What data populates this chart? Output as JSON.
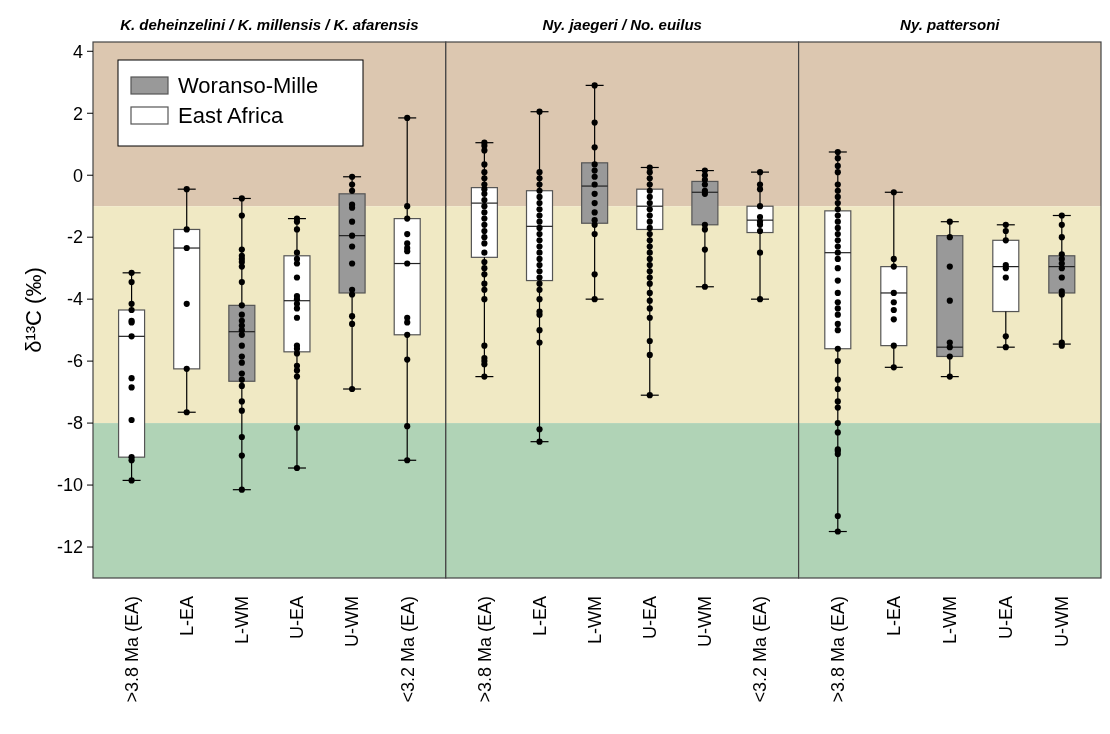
{
  "chart_data": [
    {
      "type": "box",
      "title": "K. deheinzelini / K. millensis / K. afarensis",
      "ylabel": "δ¹³C (‰)",
      "categories": [
        ">3.8 Ma (EA)",
        "L-EA",
        "L-WM",
        "U-EA",
        "U-WM",
        "<3.2 Ma (EA)"
      ],
      "ylim": [
        -13,
        4.3
      ],
      "yticks": [
        -12,
        -10,
        -8,
        -6,
        -4,
        -2,
        0,
        2,
        4
      ],
      "legend": "top left",
      "marker": "circle",
      "bands": [
        {
          "axis": "y",
          "from": -1,
          "to": 4.3,
          "color": "#dcc7b0"
        },
        {
          "axis": "y",
          "from": -8,
          "to": -1,
          "color": "#f0e9c4"
        },
        {
          "axis": "y",
          "from": -13,
          "to": -8,
          "color": "#b0d3b6"
        }
      ],
      "series": [
        {
          "name": "Woranso-Mille",
          "color": "#999999",
          "boxes": [
            null,
            null,
            {
              "low": -10.15,
              "q1": -6.65,
              "median": -5.05,
              "q3": -4.2,
              "high": -0.75
            },
            null,
            {
              "low": -6.9,
              "q1": -3.8,
              "median": -1.95,
              "q3": -0.6,
              "high": -0.05
            },
            null
          ]
        },
        {
          "name": "East Africa",
          "color": "#ffffff",
          "boxes": [
            {
              "low": -9.85,
              "q1": -9.1,
              "median": -5.2,
              "q3": -4.35,
              "high": -3.15
            },
            {
              "low": -7.65,
              "q1": -6.25,
              "median": -2.35,
              "q3": -1.75,
              "high": -0.45
            },
            null,
            {
              "low": -9.45,
              "q1": -5.7,
              "median": -4.05,
              "q3": -2.6,
              "high": -1.4
            },
            null,
            {
              "low": -9.2,
              "q1": -5.15,
              "median": -2.85,
              "q3": -1.4,
              "high": 1.85
            }
          ]
        },
        {
          "type": "scatter",
          "color": "#000000",
          "x": [
            ">3.8 Ma (EA)",
            ">3.8 Ma (EA)",
            ">3.8 Ma (EA)",
            ">3.8 Ma (EA)",
            ">3.8 Ma (EA)",
            ">3.8 Ma (EA)",
            ">3.8 Ma (EA)",
            ">3.8 Ma (EA)",
            ">3.8 Ma (EA)",
            ">3.8 Ma (EA)",
            ">3.8 Ma (EA)",
            ">3.8 Ma (EA)",
            ">3.8 Ma (EA)",
            "L-EA",
            "L-EA",
            "L-EA",
            "L-EA",
            "L-EA",
            "L-EA",
            "L-WM",
            "L-WM",
            "L-WM",
            "L-WM",
            "L-WM",
            "L-WM",
            "L-WM",
            "L-WM",
            "L-WM",
            "L-WM",
            "L-WM",
            "L-WM",
            "L-WM",
            "L-WM",
            "L-WM",
            "L-WM",
            "L-WM",
            "L-WM",
            "L-WM",
            "L-WM",
            "L-WM",
            "L-WM",
            "L-WM",
            "L-WM",
            "L-WM",
            "U-EA",
            "U-EA",
            "U-EA",
            "U-EA",
            "U-EA",
            "U-EA",
            "U-EA",
            "U-EA",
            "U-EA",
            "U-EA",
            "U-EA",
            "U-EA",
            "U-EA",
            "U-EA",
            "U-EA",
            "U-EA",
            "U-EA",
            "U-EA",
            "U-EA",
            "U-EA",
            "U-WM",
            "U-WM",
            "U-WM",
            "U-WM",
            "U-WM",
            "U-WM",
            "U-WM",
            "U-WM",
            "U-WM",
            "U-WM",
            "U-WM",
            "U-WM",
            "U-WM",
            "U-WM",
            "<3.2 Ma (EA)",
            "<3.2 Ma (EA)",
            "<3.2 Ma (EA)",
            "<3.2 Ma (EA)",
            "<3.2 Ma (EA)",
            "<3.2 Ma (EA)",
            "<3.2 Ma (EA)",
            "<3.2 Ma (EA)",
            "<3.2 Ma (EA)",
            "<3.2 Ma (EA)",
            "<3.2 Ma (EA)",
            "<3.2 Ma (EA)",
            "<3.2 Ma (EA)",
            "<3.2 Ma (EA)"
          ],
          "values": [
            -3.15,
            -3.45,
            -4.15,
            -4.35,
            -4.7,
            -4.75,
            -5.2,
            -6.55,
            -6.85,
            -7.9,
            -9.1,
            -9.2,
            -9.85,
            -0.45,
            -1.75,
            -2.35,
            -4.15,
            -6.25,
            -7.65,
            -0.75,
            -1.3,
            -2.4,
            -2.6,
            -2.7,
            -2.8,
            -2.95,
            -3.45,
            -4.2,
            -4.5,
            -4.7,
            -4.85,
            -5.0,
            -5.15,
            -5.5,
            -5.85,
            -6.05,
            -6.4,
            -6.6,
            -6.8,
            -7.3,
            -7.6,
            -8.45,
            -9.05,
            -10.15,
            -1.4,
            -1.5,
            -1.75,
            -2.5,
            -2.7,
            -2.85,
            -3.3,
            -3.9,
            -4.0,
            -4.15,
            -4.3,
            -4.6,
            -5.5,
            -5.6,
            -5.75,
            -6.15,
            -6.3,
            -6.5,
            -8.15,
            -9.45,
            -0.05,
            -0.3,
            -0.5,
            -0.95,
            -1.05,
            -1.5,
            -1.95,
            -2.3,
            -2.85,
            -3.7,
            -3.85,
            -4.55,
            -4.8,
            -6.9,
            1.85,
            -1.0,
            -1.4,
            -1.9,
            -2.2,
            -2.35,
            -2.45,
            -2.85,
            -4.6,
            -4.75,
            -5.15,
            -5.95,
            -8.1,
            -9.2
          ]
        }
      ]
    },
    {
      "type": "box",
      "title": "Ny. jaegeri / No. euilus",
      "categories": [
        ">3.8 Ma (EA)",
        "L-EA",
        "L-WM",
        "U-EA",
        "U-WM",
        "<3.2 Ma (EA)"
      ],
      "ylim": [
        -13,
        4.3
      ],
      "tick_labels": "x",
      "marker": "circle",
      "bands": [
        {
          "axis": "y",
          "from": -1,
          "to": 4.3,
          "color": "#dcc7b0"
        },
        {
          "axis": "y",
          "from": -8,
          "to": -1,
          "color": "#f0e9c4"
        },
        {
          "axis": "y",
          "from": -13,
          "to": -8,
          "color": "#b0d3b6"
        }
      ],
      "series": [
        {
          "color": "#999999",
          "boxes": [
            null,
            null,
            {
              "low": -4.0,
              "q1": -1.55,
              "median": -0.35,
              "q3": 0.4,
              "high": 2.9
            },
            null,
            {
              "low": -3.6,
              "q1": -1.6,
              "median": -0.55,
              "q3": -0.2,
              "high": 0.15
            },
            null
          ]
        },
        {
          "color": "#ffffff",
          "boxes": [
            {
              "low": -6.5,
              "q1": -2.65,
              "median": -0.9,
              "q3": -0.4,
              "high": 1.05
            },
            {
              "low": -8.6,
              "q1": -3.4,
              "median": -1.65,
              "q3": -0.5,
              "high": 2.05
            },
            null,
            {
              "low": -7.1,
              "q1": -1.75,
              "median": -1.0,
              "q3": -0.45,
              "high": 0.25
            },
            null,
            {
              "low": -4.0,
              "q1": -1.85,
              "median": -1.45,
              "q3": -1.0,
              "high": 0.1
            }
          ]
        },
        {
          "type": "scatter",
          "color": "#000000",
          "x": [
            ">3.8 Ma (EA)",
            ">3.8 Ma (EA)",
            ">3.8 Ma (EA)",
            ">3.8 Ma (EA)",
            ">3.8 Ma (EA)",
            ">3.8 Ma (EA)",
            ">3.8 Ma (EA)",
            ">3.8 Ma (EA)",
            ">3.8 Ma (EA)",
            ">3.8 Ma (EA)",
            ">3.8 Ma (EA)",
            ">3.8 Ma (EA)",
            ">3.8 Ma (EA)",
            ">3.8 Ma (EA)",
            ">3.8 Ma (EA)",
            ">3.8 Ma (EA)",
            ">3.8 Ma (EA)",
            ">3.8 Ma (EA)",
            ">3.8 Ma (EA)",
            ">3.8 Ma (EA)",
            ">3.8 Ma (EA)",
            ">3.8 Ma (EA)",
            ">3.8 Ma (EA)",
            ">3.8 Ma (EA)",
            ">3.8 Ma (EA)",
            ">3.8 Ma (EA)",
            ">3.8 Ma (EA)",
            ">3.8 Ma (EA)",
            ">3.8 Ma (EA)",
            "L-EA",
            "L-EA",
            "L-EA",
            "L-EA",
            "L-EA",
            "L-EA",
            "L-EA",
            "L-EA",
            "L-EA",
            "L-EA",
            "L-EA",
            "L-EA",
            "L-EA",
            "L-EA",
            "L-EA",
            "L-EA",
            "L-EA",
            "L-EA",
            "L-EA",
            "L-EA",
            "L-EA",
            "L-EA",
            "L-EA",
            "L-EA",
            "L-EA",
            "L-EA",
            "L-EA",
            "L-EA",
            "L-WM",
            "L-WM",
            "L-WM",
            "L-WM",
            "L-WM",
            "L-WM",
            "L-WM",
            "L-WM",
            "L-WM",
            "L-WM",
            "L-WM",
            "L-WM",
            "L-WM",
            "L-WM",
            "L-WM",
            "U-EA",
            "U-EA",
            "U-EA",
            "U-EA",
            "U-EA",
            "U-EA",
            "U-EA",
            "U-EA",
            "U-EA",
            "U-EA",
            "U-EA",
            "U-EA",
            "U-EA",
            "U-EA",
            "U-EA",
            "U-EA",
            "U-EA",
            "U-EA",
            "U-EA",
            "U-EA",
            "U-EA",
            "U-EA",
            "U-EA",
            "U-EA",
            "U-EA",
            "U-EA",
            "U-EA",
            "U-WM",
            "U-WM",
            "U-WM",
            "U-WM",
            "U-WM",
            "U-WM",
            "U-WM",
            "U-WM",
            "U-WM",
            "U-WM",
            "<3.2 Ma (EA)",
            "<3.2 Ma (EA)",
            "<3.2 Ma (EA)",
            "<3.2 Ma (EA)",
            "<3.2 Ma (EA)",
            "<3.2 Ma (EA)",
            "<3.2 Ma (EA)",
            "<3.2 Ma (EA)",
            "<3.2 Ma (EA)",
            "<3.2 Ma (EA)"
          ],
          "values": [
            1.05,
            0.95,
            0.8,
            0.35,
            0.1,
            -0.1,
            -0.3,
            -0.45,
            -0.6,
            -0.8,
            -1.0,
            -1.2,
            -1.4,
            -1.6,
            -1.8,
            -2.0,
            -2.2,
            -2.5,
            -2.8,
            -3.0,
            -3.2,
            -3.5,
            -3.7,
            -4.0,
            -5.5,
            -5.9,
            -6.0,
            -6.1,
            -6.5,
            2.05,
            0.1,
            -0.1,
            -0.3,
            -0.5,
            -0.7,
            -0.9,
            -1.1,
            -1.3,
            -1.5,
            -1.7,
            -1.9,
            -2.1,
            -2.3,
            -2.5,
            -2.7,
            -2.9,
            -3.1,
            -3.3,
            -3.5,
            -3.7,
            -4.0,
            -4.4,
            -4.5,
            -5.0,
            -5.4,
            -8.2,
            -8.6,
            2.9,
            1.7,
            0.9,
            0.35,
            0.15,
            -0.05,
            -0.3,
            -0.6,
            -0.9,
            -1.2,
            -1.45,
            -1.6,
            -1.9,
            -3.2,
            -4.0,
            0.25,
            0.1,
            -0.1,
            -0.3,
            -0.5,
            -0.7,
            -0.9,
            -1.1,
            -1.3,
            -1.5,
            -1.7,
            -1.9,
            -2.1,
            -2.3,
            -2.5,
            -2.7,
            -2.9,
            -3.1,
            -3.3,
            -3.5,
            -3.8,
            -4.05,
            -4.3,
            -4.6,
            -5.35,
            -5.8,
            -7.1,
            0.15,
            0.0,
            -0.15,
            -0.3,
            -0.5,
            -0.6,
            -1.6,
            -1.75,
            -2.4,
            -3.6,
            0.1,
            -0.3,
            -0.45,
            -1.0,
            -1.35,
            -1.5,
            -1.6,
            -1.8,
            -2.5,
            -4.0
          ]
        }
      ]
    },
    {
      "type": "box",
      "title": "Ny. pattersoni",
      "categories": [
        ">3.8 Ma (EA)",
        "L-EA",
        "L-WM",
        "U-EA",
        "U-WM"
      ],
      "ylim": [
        -13,
        4.3
      ],
      "tick_labels": "x",
      "marker": "circle",
      "bands": [
        {
          "axis": "y",
          "from": -1,
          "to": 4.3,
          "color": "#dcc7b0"
        },
        {
          "axis": "y",
          "from": -8,
          "to": -1,
          "color": "#f0e9c4"
        },
        {
          "axis": "y",
          "from": -13,
          "to": -8,
          "color": "#b0d3b6"
        }
      ],
      "series": [
        {
          "color": "#999999",
          "boxes": [
            null,
            null,
            {
              "low": -6.5,
              "q1": -5.85,
              "median": -5.55,
              "q3": -1.95,
              "high": -1.5
            },
            null,
            {
              "low": -5.45,
              "q1": -3.8,
              "median": -2.95,
              "q3": -2.6,
              "high": -1.3
            }
          ]
        },
        {
          "color": "#ffffff",
          "boxes": [
            {
              "low": -11.5,
              "q1": -5.6,
              "median": -2.5,
              "q3": -1.15,
              "high": 0.75
            },
            {
              "low": -6.2,
              "q1": -5.5,
              "median": -3.8,
              "q3": -2.95,
              "high": -0.55
            },
            null,
            {
              "low": -5.55,
              "q1": -4.4,
              "median": -2.95,
              "q3": -2.1,
              "high": -1.6
            },
            null
          ]
        },
        {
          "type": "scatter",
          "color": "#000000",
          "x": [
            ">3.8 Ma (EA)",
            ">3.8 Ma (EA)",
            ">3.8 Ma (EA)",
            ">3.8 Ma (EA)",
            ">3.8 Ma (EA)",
            ">3.8 Ma (EA)",
            ">3.8 Ma (EA)",
            ">3.8 Ma (EA)",
            ">3.8 Ma (EA)",
            ">3.8 Ma (EA)",
            ">3.8 Ma (EA)",
            ">3.8 Ma (EA)",
            ">3.8 Ma (EA)",
            ">3.8 Ma (EA)",
            ">3.8 Ma (EA)",
            ">3.8 Ma (EA)",
            ">3.8 Ma (EA)",
            ">3.8 Ma (EA)",
            ">3.8 Ma (EA)",
            ">3.8 Ma (EA)",
            ">3.8 Ma (EA)",
            ">3.8 Ma (EA)",
            ">3.8 Ma (EA)",
            ">3.8 Ma (EA)",
            ">3.8 Ma (EA)",
            ">3.8 Ma (EA)",
            ">3.8 Ma (EA)",
            ">3.8 Ma (EA)",
            ">3.8 Ma (EA)",
            ">3.8 Ma (EA)",
            ">3.8 Ma (EA)",
            ">3.8 Ma (EA)",
            ">3.8 Ma (EA)",
            ">3.8 Ma (EA)",
            ">3.8 Ma (EA)",
            ">3.8 Ma (EA)",
            ">3.8 Ma (EA)",
            ">3.8 Ma (EA)",
            "L-EA",
            "L-EA",
            "L-EA",
            "L-EA",
            "L-EA",
            "L-EA",
            "L-EA",
            "L-EA",
            "L-EA",
            "L-WM",
            "L-WM",
            "L-WM",
            "L-WM",
            "L-WM",
            "L-WM",
            "L-WM",
            "L-WM",
            "U-EA",
            "U-EA",
            "U-EA",
            "U-EA",
            "U-EA",
            "U-EA",
            "U-EA",
            "U-EA",
            "U-WM",
            "U-WM",
            "U-WM",
            "U-WM",
            "U-WM",
            "U-WM",
            "U-WM",
            "U-WM",
            "U-WM",
            "U-WM",
            "U-WM",
            "U-WM"
          ],
          "values": [
            0.75,
            0.55,
            0.3,
            0.1,
            -0.3,
            -0.5,
            -0.7,
            -0.9,
            -1.1,
            -1.3,
            -1.5,
            -1.7,
            -1.9,
            -2.1,
            -2.3,
            -2.5,
            -2.7,
            -3.0,
            -3.4,
            -3.8,
            -4.1,
            -4.3,
            -4.5,
            -4.8,
            -5.0,
            -5.6,
            -6.0,
            -6.6,
            -6.9,
            -7.3,
            -7.5,
            -8.0,
            -8.3,
            -8.85,
            -8.9,
            -9.0,
            -11.0,
            -11.5,
            -0.55,
            -2.7,
            -2.95,
            -3.8,
            -4.1,
            -4.35,
            -4.65,
            -5.5,
            -6.2,
            -1.5,
            -2.0,
            -2.95,
            -4.05,
            -5.4,
            -5.55,
            -5.85,
            -6.5,
            -1.6,
            -1.8,
            -2.1,
            -2.9,
            -3.0,
            -3.3,
            -5.2,
            -5.55,
            -1.3,
            -1.6,
            -2.0,
            -2.55,
            -2.7,
            -2.85,
            -3.0,
            -3.3,
            -3.75,
            -3.85,
            -5.4,
            -5.5
          ]
        }
      ]
    }
  ]
}
